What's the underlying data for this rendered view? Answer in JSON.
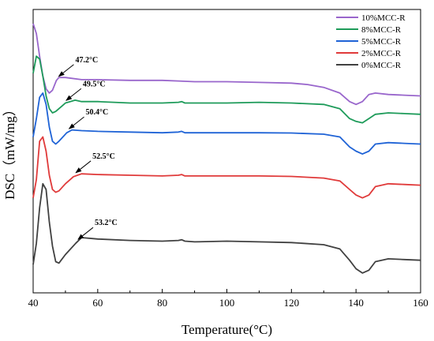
{
  "chart_data": {
    "type": "line",
    "xlabel": "Temperature(°C)",
    "ylabel": "DSC（mW/mg）",
    "xlim": [
      40,
      160
    ],
    "xticks": [
      "40",
      "60",
      "80",
      "100",
      "120",
      "140",
      "160"
    ],
    "yticks_shown": false,
    "grid": false,
    "legend_position": "top-right",
    "series": [
      {
        "name": "10%MCC-R",
        "color": "#9966CC",
        "baseline": 0.92,
        "points": [
          [
            40,
            1.35
          ],
          [
            41,
            1.28
          ],
          [
            42,
            1.12
          ],
          [
            43,
            0.98
          ],
          [
            44,
            0.89
          ],
          [
            45,
            0.86
          ],
          [
            46,
            0.88
          ],
          [
            47.2,
            0.95
          ],
          [
            48,
            0.97
          ],
          [
            50,
            0.97
          ],
          [
            55,
            0.955
          ],
          [
            60,
            0.955
          ],
          [
            70,
            0.95
          ],
          [
            80,
            0.95
          ],
          [
            85,
            0.945
          ],
          [
            90,
            0.94
          ],
          [
            100,
            0.94
          ],
          [
            110,
            0.935
          ],
          [
            120,
            0.93
          ],
          [
            125,
            0.92
          ],
          [
            130,
            0.9
          ],
          [
            135,
            0.86
          ],
          [
            138,
            0.8
          ],
          [
            140,
            0.78
          ],
          [
            142,
            0.8
          ],
          [
            144,
            0.85
          ],
          [
            146,
            0.86
          ],
          [
            150,
            0.85
          ],
          [
            155,
            0.845
          ],
          [
            160,
            0.84
          ]
        ]
      },
      {
        "name": "8%MCC-R",
        "color": "#1E9B5A",
        "baseline": 0.72,
        "points": [
          [
            40,
            1.0
          ],
          [
            41,
            1.12
          ],
          [
            42,
            1.1
          ],
          [
            43,
            0.98
          ],
          [
            44,
            0.84
          ],
          [
            45,
            0.75
          ],
          [
            46,
            0.72
          ],
          [
            47,
            0.73
          ],
          [
            49.5,
            0.78
          ],
          [
            50,
            0.79
          ],
          [
            53,
            0.81
          ],
          [
            55,
            0.8
          ],
          [
            60,
            0.8
          ],
          [
            70,
            0.79
          ],
          [
            80,
            0.79
          ],
          [
            85,
            0.795
          ],
          [
            86,
            0.8
          ],
          [
            87,
            0.79
          ],
          [
            90,
            0.79
          ],
          [
            100,
            0.79
          ],
          [
            110,
            0.795
          ],
          [
            120,
            0.79
          ],
          [
            130,
            0.78
          ],
          [
            135,
            0.75
          ],
          [
            138,
            0.68
          ],
          [
            140,
            0.66
          ],
          [
            142,
            0.65
          ],
          [
            144,
            0.68
          ],
          [
            146,
            0.71
          ],
          [
            150,
            0.72
          ],
          [
            155,
            0.715
          ],
          [
            160,
            0.71
          ]
        ]
      },
      {
        "name": "5%MCC-R",
        "color": "#1F63D6",
        "baseline": 0.5,
        "points": [
          [
            40,
            0.55
          ],
          [
            41,
            0.68
          ],
          [
            42,
            0.83
          ],
          [
            43,
            0.86
          ],
          [
            44,
            0.78
          ],
          [
            45,
            0.62
          ],
          [
            46,
            0.52
          ],
          [
            47,
            0.5
          ],
          [
            48,
            0.52
          ],
          [
            50.4,
            0.58
          ],
          [
            52,
            0.6
          ],
          [
            55,
            0.595
          ],
          [
            60,
            0.59
          ],
          [
            70,
            0.585
          ],
          [
            80,
            0.58
          ],
          [
            85,
            0.585
          ],
          [
            86,
            0.59
          ],
          [
            87,
            0.58
          ],
          [
            90,
            0.58
          ],
          [
            100,
            0.58
          ],
          [
            110,
            0.58
          ],
          [
            120,
            0.578
          ],
          [
            130,
            0.57
          ],
          [
            135,
            0.55
          ],
          [
            138,
            0.48
          ],
          [
            140,
            0.45
          ],
          [
            142,
            0.43
          ],
          [
            144,
            0.45
          ],
          [
            146,
            0.5
          ],
          [
            150,
            0.51
          ],
          [
            155,
            0.505
          ],
          [
            160,
            0.5
          ]
        ]
      },
      {
        "name": "2%MCC-R",
        "color": "#E03A3A",
        "baseline": 0.28,
        "points": [
          [
            40,
            0.12
          ],
          [
            41,
            0.25
          ],
          [
            42,
            0.52
          ],
          [
            43,
            0.55
          ],
          [
            44,
            0.45
          ],
          [
            45,
            0.28
          ],
          [
            46,
            0.18
          ],
          [
            47,
            0.16
          ],
          [
            48,
            0.17
          ],
          [
            50,
            0.22
          ],
          [
            52.5,
            0.27
          ],
          [
            55,
            0.29
          ],
          [
            60,
            0.285
          ],
          [
            70,
            0.28
          ],
          [
            80,
            0.275
          ],
          [
            85,
            0.28
          ],
          [
            86,
            0.285
          ],
          [
            87,
            0.275
          ],
          [
            90,
            0.275
          ],
          [
            100,
            0.275
          ],
          [
            110,
            0.275
          ],
          [
            120,
            0.272
          ],
          [
            130,
            0.26
          ],
          [
            135,
            0.24
          ],
          [
            138,
            0.18
          ],
          [
            140,
            0.14
          ],
          [
            142,
            0.12
          ],
          [
            144,
            0.14
          ],
          [
            146,
            0.2
          ],
          [
            150,
            0.22
          ],
          [
            155,
            0.215
          ],
          [
            160,
            0.21
          ]
        ]
      },
      {
        "name": "0%MCC-R",
        "color": "#404040",
        "baseline": 0.0,
        "points": [
          [
            40,
            -0.35
          ],
          [
            41,
            -0.2
          ],
          [
            42,
            0.05
          ],
          [
            43,
            0.22
          ],
          [
            44,
            0.18
          ],
          [
            45,
            -0.05
          ],
          [
            46,
            -0.22
          ],
          [
            47,
            -0.33
          ],
          [
            48,
            -0.34
          ],
          [
            50,
            -0.28
          ],
          [
            53.2,
            -0.2
          ],
          [
            55,
            -0.16
          ],
          [
            60,
            -0.17
          ],
          [
            70,
            -0.18
          ],
          [
            80,
            -0.185
          ],
          [
            85,
            -0.18
          ],
          [
            86,
            -0.175
          ],
          [
            87,
            -0.185
          ],
          [
            90,
            -0.19
          ],
          [
            100,
            -0.185
          ],
          [
            110,
            -0.19
          ],
          [
            120,
            -0.195
          ],
          [
            130,
            -0.21
          ],
          [
            135,
            -0.24
          ],
          [
            138,
            -0.32
          ],
          [
            140,
            -0.38
          ],
          [
            142,
            -0.41
          ],
          [
            144,
            -0.39
          ],
          [
            146,
            -0.33
          ],
          [
            150,
            -0.31
          ],
          [
            155,
            -0.315
          ],
          [
            160,
            -0.32
          ]
        ]
      }
    ],
    "annotations": [
      {
        "text": "47.2°C",
        "x": 47.2,
        "series": "10%MCC-R"
      },
      {
        "text": "49.5°C",
        "x": 49.5,
        "series": "8%MCC-R"
      },
      {
        "text": "50.4°C",
        "x": 50.4,
        "series": "5%MCC-R"
      },
      {
        "text": "52.5°C",
        "x": 52.5,
        "series": "2%MCC-R"
      },
      {
        "text": "53.2°C",
        "x": 53.2,
        "series": "0%MCC-R"
      }
    ],
    "legend_order": [
      "10%MCC-R",
      "8%MCC-R",
      "5%MCC-R",
      "2%MCC-R",
      "0%MCC-R"
    ]
  }
}
